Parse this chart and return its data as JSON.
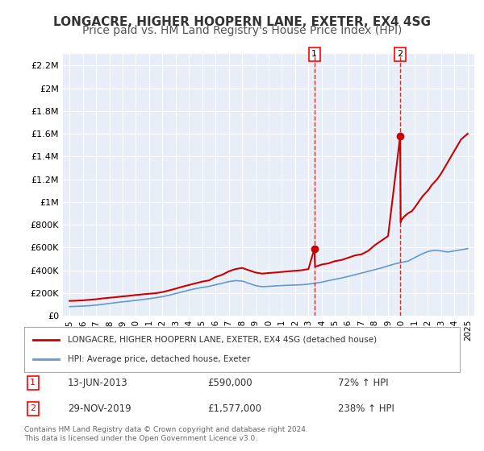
{
  "title": "LONGACRE, HIGHER HOOPERN LANE, EXETER, EX4 4SG",
  "subtitle": "Price paid vs. HM Land Registry's House Price Index (HPI)",
  "title_fontsize": 11,
  "subtitle_fontsize": 10,
  "background_color": "#ffffff",
  "plot_bg_color": "#e8eef8",
  "grid_color": "#ffffff",
  "xmin": 1994.5,
  "xmax": 2025.5,
  "ymin": 0,
  "ymax": 2300000,
  "yticks": [
    0,
    200000,
    400000,
    600000,
    800000,
    1000000,
    1200000,
    1400000,
    1600000,
    1800000,
    2000000,
    2200000
  ],
  "ytick_labels": [
    "£0",
    "£200K",
    "£400K",
    "£600K",
    "£800K",
    "£1M",
    "£1.2M",
    "£1.4M",
    "£1.6M",
    "£1.8M",
    "£2M",
    "£2.2M"
  ],
  "xticks": [
    1995,
    1996,
    1997,
    1998,
    1999,
    2000,
    2001,
    2002,
    2003,
    2004,
    2005,
    2006,
    2007,
    2008,
    2009,
    2010,
    2011,
    2012,
    2013,
    2014,
    2015,
    2016,
    2017,
    2018,
    2019,
    2020,
    2021,
    2022,
    2023,
    2024,
    2025
  ],
  "red_line_color": "#cc0000",
  "blue_line_color": "#6699cc",
  "point1_x": 2013.45,
  "point1_y": 590000,
  "point2_x": 2019.91,
  "point2_y": 1577000,
  "point1_label": "1",
  "point2_label": "2",
  "point1_date": "13-JUN-2013",
  "point1_price": "£590,000",
  "point1_hpi": "72% ↑ HPI",
  "point2_date": "29-NOV-2019",
  "point2_price": "£1,577,000",
  "point2_hpi": "238% ↑ HPI",
  "legend_line1": "LONGACRE, HIGHER HOOPERN LANE, EXETER, EX4 4SG (detached house)",
  "legend_line2": "HPI: Average price, detached house, Exeter",
  "footer": "Contains HM Land Registry data © Crown copyright and database right 2024.\nThis data is licensed under the Open Government Licence v3.0.",
  "red_x": [
    1995.0,
    1995.5,
    1996.0,
    1996.5,
    1997.0,
    1997.5,
    1998.0,
    1998.5,
    1999.0,
    1999.5,
    2000.0,
    2000.5,
    2001.0,
    2001.5,
    2002.0,
    2002.5,
    2003.0,
    2003.5,
    2004.0,
    2004.5,
    2005.0,
    2005.5,
    2006.0,
    2006.5,
    2007.0,
    2007.5,
    2008.0,
    2008.5,
    2009.0,
    2009.5,
    2010.0,
    2010.5,
    2011.0,
    2011.5,
    2012.0,
    2012.5,
    2013.0,
    2013.45,
    2013.5,
    2014.0,
    2014.5,
    2015.0,
    2015.5,
    2016.0,
    2016.5,
    2017.0,
    2017.5,
    2018.0,
    2018.5,
    2019.0,
    2019.91,
    2019.95,
    2020.0,
    2020.2,
    2020.5,
    2020.8,
    2021.0,
    2021.3,
    2021.6,
    2022.0,
    2022.3,
    2022.7,
    2023.0,
    2023.5,
    2024.0,
    2024.5,
    2025.0
  ],
  "red_y": [
    130000,
    132000,
    135000,
    140000,
    145000,
    152000,
    158000,
    163000,
    170000,
    175000,
    182000,
    188000,
    193000,
    198000,
    208000,
    222000,
    238000,
    255000,
    270000,
    285000,
    300000,
    310000,
    340000,
    360000,
    390000,
    410000,
    420000,
    400000,
    380000,
    370000,
    375000,
    380000,
    385000,
    390000,
    395000,
    400000,
    410000,
    590000,
    430000,
    450000,
    460000,
    480000,
    490000,
    510000,
    530000,
    540000,
    570000,
    620000,
    660000,
    700000,
    1577000,
    820000,
    840000,
    870000,
    900000,
    920000,
    950000,
    1000000,
    1050000,
    1100000,
    1150000,
    1200000,
    1250000,
    1350000,
    1450000,
    1550000,
    1600000
  ],
  "blue_x": [
    1995.0,
    1995.5,
    1996.0,
    1996.5,
    1997.0,
    1997.5,
    1998.0,
    1998.5,
    1999.0,
    1999.5,
    2000.0,
    2000.5,
    2001.0,
    2001.5,
    2002.0,
    2002.5,
    2003.0,
    2003.5,
    2004.0,
    2004.5,
    2005.0,
    2005.5,
    2006.0,
    2006.5,
    2007.0,
    2007.5,
    2008.0,
    2008.5,
    2009.0,
    2009.5,
    2010.0,
    2010.5,
    2011.0,
    2011.5,
    2012.0,
    2012.5,
    2013.0,
    2013.5,
    2014.0,
    2014.5,
    2015.0,
    2015.5,
    2016.0,
    2016.5,
    2017.0,
    2017.5,
    2018.0,
    2018.5,
    2019.0,
    2019.5,
    2020.0,
    2020.5,
    2021.0,
    2021.5,
    2022.0,
    2022.5,
    2023.0,
    2023.5,
    2024.0,
    2024.5,
    2025.0
  ],
  "blue_y": [
    80000,
    82000,
    85000,
    88000,
    93000,
    100000,
    108000,
    115000,
    122000,
    128000,
    135000,
    142000,
    150000,
    158000,
    168000,
    180000,
    195000,
    210000,
    225000,
    238000,
    248000,
    258000,
    272000,
    285000,
    300000,
    308000,
    305000,
    285000,
    265000,
    255000,
    258000,
    262000,
    265000,
    268000,
    270000,
    272000,
    278000,
    285000,
    295000,
    308000,
    320000,
    332000,
    345000,
    360000,
    375000,
    390000,
    405000,
    420000,
    438000,
    455000,
    468000,
    480000,
    510000,
    540000,
    565000,
    575000,
    570000,
    560000,
    570000,
    580000,
    590000
  ]
}
